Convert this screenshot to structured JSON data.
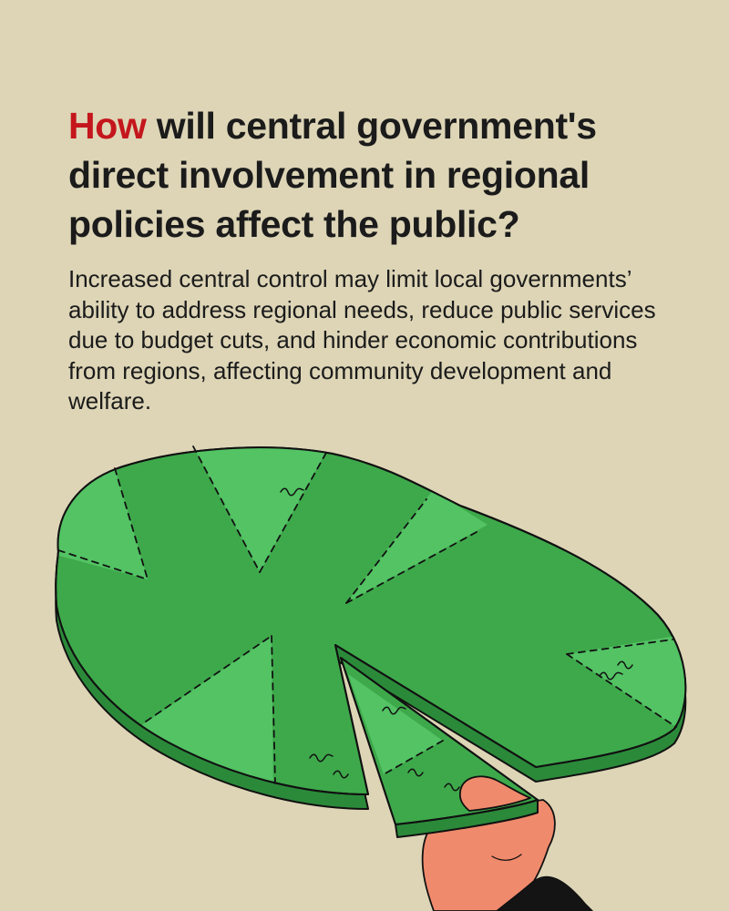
{
  "title": {
    "highlight": "How",
    "line1_rest": "will central government's",
    "line2": "direct involvement in regional",
    "line3": "policies affect the public?"
  },
  "body": {
    "lines": [
      "Increased central control may limit local governments’",
      "ability to address regional needs, reduce public services",
      "due to budget cuts, and hinder economic contributions",
      "from regions, affecting community development and",
      "welfare."
    ]
  },
  "colors": {
    "background": "#ddd5b6",
    "accent": "#c4161c",
    "text": "#1b1b1b",
    "land_top": "#3ea94b",
    "land_light": "#53c364",
    "land_side": "#2b8a3a",
    "hand": "#f08a6c",
    "sleeve": "#141414"
  }
}
